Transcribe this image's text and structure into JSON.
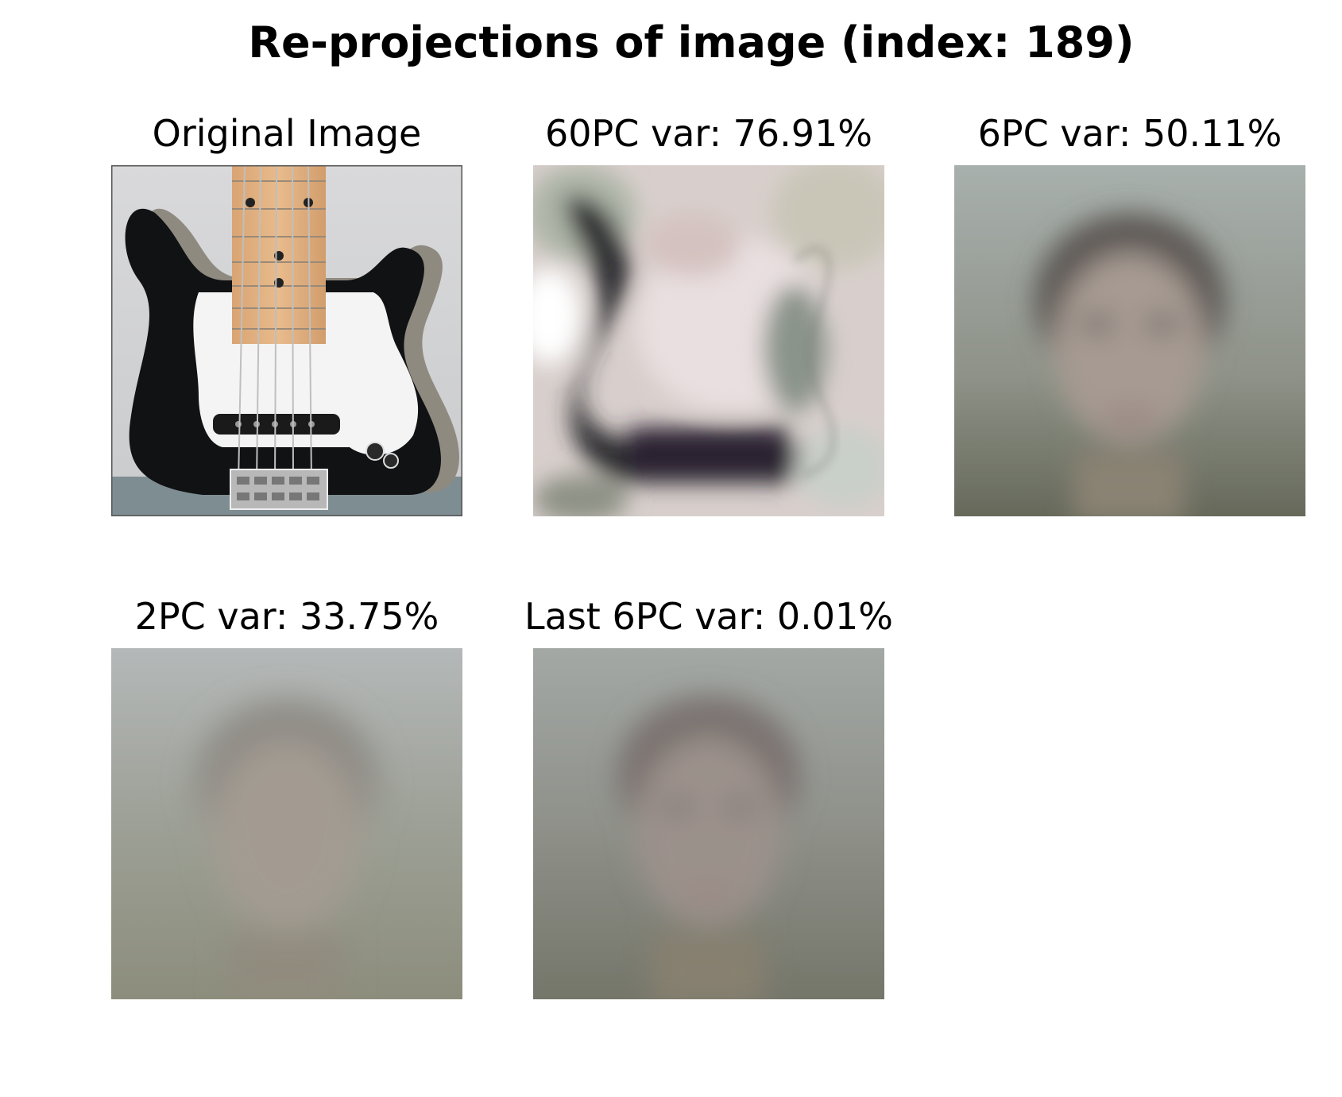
{
  "figure": {
    "title": "Re-projections of image (index: 189)"
  },
  "panels": [
    {
      "title": "Original Image"
    },
    {
      "title": "60PC var: 76.91%"
    },
    {
      "title": "6PC var: 50.11%"
    },
    {
      "title": "2PC var: 33.75%"
    },
    {
      "title": "Last 6PC var: 0.01%"
    }
  ]
}
